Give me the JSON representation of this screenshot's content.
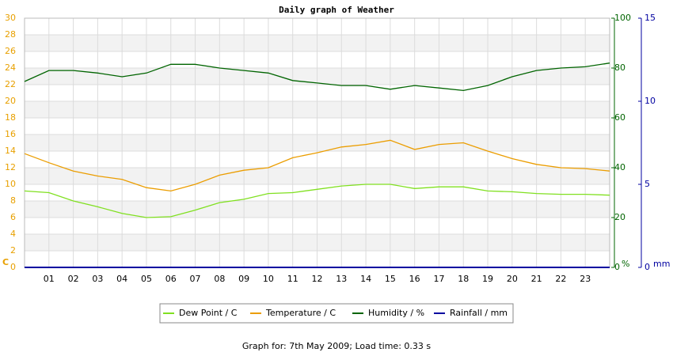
{
  "chart_data": {
    "type": "line",
    "title": "Daily graph of Weather",
    "footer": "Graph for: 7th May 2009; Load time: 0.33 s",
    "y_unit": "C",
    "y2_unit": "%",
    "y3_unit": "mm",
    "x": [
      0,
      1,
      2,
      3,
      4,
      5,
      6,
      7,
      8,
      9,
      10,
      11,
      12,
      13,
      14,
      15,
      16,
      17,
      18,
      19,
      20,
      21,
      22,
      23,
      24
    ],
    "xlim": [
      0,
      24
    ],
    "xticks": [
      {
        "value": 1,
        "label": "01"
      },
      {
        "value": 2,
        "label": "02"
      },
      {
        "value": 3,
        "label": "03"
      },
      {
        "value": 4,
        "label": "04"
      },
      {
        "value": 5,
        "label": "05"
      },
      {
        "value": 6,
        "label": "06"
      },
      {
        "value": 7,
        "label": "07"
      },
      {
        "value": 8,
        "label": "08"
      },
      {
        "value": 9,
        "label": "09"
      },
      {
        "value": 10,
        "label": "10"
      },
      {
        "value": 11,
        "label": "11"
      },
      {
        "value": 12,
        "label": "12"
      },
      {
        "value": 13,
        "label": "13"
      },
      {
        "value": 14,
        "label": "14"
      },
      {
        "value": 15,
        "label": "15"
      },
      {
        "value": 16,
        "label": "16"
      },
      {
        "value": 17,
        "label": "17"
      },
      {
        "value": 18,
        "label": "18"
      },
      {
        "value": 19,
        "label": "19"
      },
      {
        "value": 20,
        "label": "20"
      },
      {
        "value": 21,
        "label": "21"
      },
      {
        "value": 22,
        "label": "22"
      },
      {
        "value": 23,
        "label": "23"
      }
    ],
    "ylim": [
      0,
      30
    ],
    "yticks": [
      0,
      2,
      4,
      6,
      8,
      10,
      12,
      14,
      16,
      18,
      20,
      22,
      24,
      26,
      28,
      30
    ],
    "y2lim": [
      0,
      100
    ],
    "y2ticks": [
      0,
      20,
      40,
      60,
      80,
      100
    ],
    "y3lim": [
      0,
      15
    ],
    "y3ticks": [
      0,
      5,
      10,
      15
    ],
    "grid": true,
    "y_color": "#e8a000",
    "y2_color": "#006400",
    "y3_color": "#0000a0",
    "series": [
      {
        "name": "Dew Point / C",
        "color": "#80e020",
        "values": [
          9.2,
          9.0,
          8.0,
          7.3,
          6.5,
          6.0,
          6.1,
          6.9,
          7.8,
          8.2,
          8.9,
          9.0,
          9.4,
          9.8,
          10.0,
          10.0,
          9.5,
          9.7,
          9.7,
          9.2,
          9.1,
          8.9,
          8.8,
          8.8,
          8.7
        ]
      },
      {
        "name": "Temperature / C",
        "color": "#eb9d00",
        "values": [
          13.7,
          12.6,
          11.6,
          11.0,
          10.6,
          9.6,
          9.2,
          10.0,
          11.1,
          11.7,
          12.0,
          13.2,
          13.8,
          14.5,
          14.8,
          15.3,
          14.2,
          14.8,
          15.0,
          14.0,
          13.1,
          12.4,
          12.0,
          11.9,
          11.6
        ]
      },
      {
        "name": "Humidity / %",
        "color": "#006400",
        "axis": "y2",
        "values": [
          74.6,
          79,
          79,
          78,
          76.5,
          78,
          81.5,
          81.5,
          80,
          79,
          78,
          75,
          74,
          73,
          73,
          71.5,
          73,
          72,
          71,
          73,
          76.5,
          79,
          80,
          80.5,
          82
        ]
      },
      {
        "name": "Rainfall / mm",
        "color": "#0000a0",
        "axis": "y3",
        "values": [
          0,
          0,
          0,
          0,
          0,
          0,
          0,
          0,
          0,
          0,
          0,
          0,
          0,
          0,
          0,
          0,
          0,
          0,
          0,
          0,
          0,
          0,
          0,
          0,
          0
        ]
      }
    ]
  }
}
